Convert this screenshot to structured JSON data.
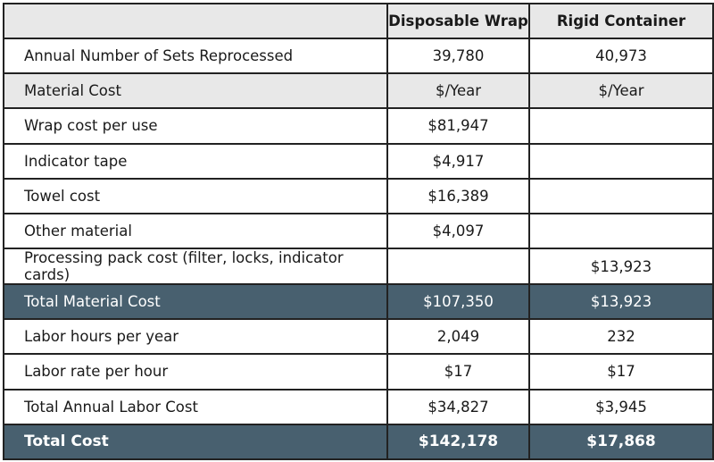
{
  "header": {
    "col_a": "Disposable Wrap",
    "col_b": "Rigid Container"
  },
  "rows": [
    {
      "label": "Annual Number of Sets Reprocessed",
      "a": "39,780",
      "b": "40,973"
    },
    {
      "label": "Material Cost",
      "a": "$/Year",
      "b": "$/Year"
    },
    {
      "label": "Wrap cost per use",
      "a": "$81,947",
      "b": ""
    },
    {
      "label": "Indicator tape",
      "a": "$4,917",
      "b": ""
    },
    {
      "label": "Towel cost",
      "a": "$16,389",
      "b": ""
    },
    {
      "label": "Other material",
      "a": "$4,097",
      "b": ""
    },
    {
      "label": "Processing pack cost (filter, locks, indicator cards)",
      "a": "",
      "b": "$13,923"
    },
    {
      "label": "Total Material Cost",
      "a": "$107,350",
      "b": "$13,923"
    },
    {
      "label": "Labor hours per year",
      "a": "2,049",
      "b": "232"
    },
    {
      "label": "Labor rate per hour",
      "a": "$17",
      "b": "$17"
    },
    {
      "label": "Total Annual Labor Cost",
      "a": "$34,827",
      "b": "$3,945"
    },
    {
      "label": "Total Cost",
      "a": "$142,178",
      "b": "$17,868"
    }
  ],
  "colors": {
    "header_bg": "#e8e8e8",
    "highlight_bg": "#48606f",
    "border": "#222222"
  }
}
